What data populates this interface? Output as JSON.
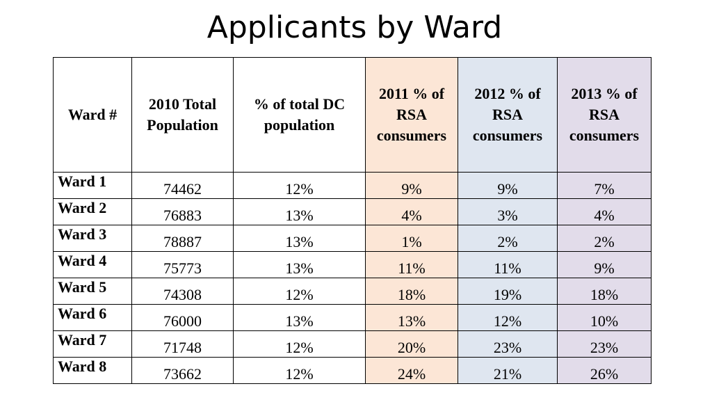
{
  "title": "Applicants by Ward",
  "table": {
    "headers": [
      "Ward #",
      "2010 Total Population",
      "% of total DC population",
      "2011 % of RSA consumers",
      "2012 % of RSA consumers",
      "2013 % of RSA consumers"
    ],
    "rows": [
      [
        "Ward 1",
        "74462",
        "12%",
        "9%",
        "9%",
        "7%"
      ],
      [
        "Ward 2",
        "76883",
        "13%",
        "4%",
        "3%",
        "4%"
      ],
      [
        "Ward 3",
        "78887",
        "13%",
        "1%",
        "2%",
        "2%"
      ],
      [
        "Ward 4",
        "75773",
        "13%",
        "11%",
        "11%",
        "9%"
      ],
      [
        "Ward 5",
        "74308",
        "12%",
        "18%",
        "19%",
        "18%"
      ],
      [
        "Ward 6",
        "76000",
        "13%",
        "13%",
        "12%",
        "10%"
      ],
      [
        "Ward 7",
        "71748",
        "12%",
        "20%",
        "23%",
        "23%"
      ],
      [
        "Ward 8",
        "73662",
        "12%",
        "24%",
        "21%",
        "26%"
      ]
    ]
  },
  "colors": {
    "col_2011_fill": "#fce6d6",
    "col_2012_fill": "#dfe6f0",
    "col_2013_fill": "#e2dcea"
  }
}
